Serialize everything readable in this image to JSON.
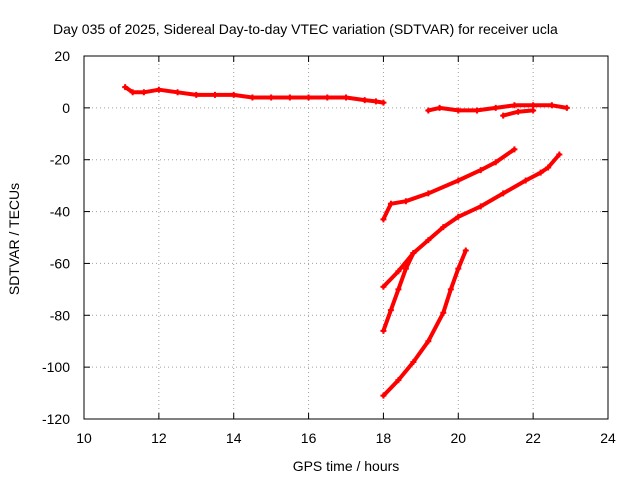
{
  "chart_data": {
    "type": "scatter",
    "title": "Day 035 of 2025, Sidereal Day-to-day VTEC variation (SDTVAR) for receiver ucla",
    "xlabel": "GPS time / hours",
    "ylabel": "SDTVAR / TECUs",
    "xlim": [
      10,
      24
    ],
    "ylim": [
      -120,
      20
    ],
    "xticks": [
      "10",
      "12",
      "14",
      "16",
      "18",
      "20",
      "22",
      "24"
    ],
    "yticks": [
      "20",
      "0",
      "-20",
      "-40",
      "-60",
      "-80",
      "-100",
      "-120"
    ],
    "grid": true,
    "color": "#ff0000",
    "series": [
      {
        "points": [
          [
            11.1,
            8
          ],
          [
            11.3,
            6
          ],
          [
            11.6,
            6
          ],
          [
            12.0,
            7
          ],
          [
            12.5,
            6
          ],
          [
            13.0,
            5
          ],
          [
            13.5,
            5
          ],
          [
            14.0,
            5
          ],
          [
            14.5,
            4
          ],
          [
            15.0,
            4
          ],
          [
            15.5,
            4
          ],
          [
            16.0,
            4
          ],
          [
            16.5,
            4
          ],
          [
            17.0,
            4
          ],
          [
            17.5,
            3
          ],
          [
            17.8,
            2.5
          ],
          [
            18.0,
            2
          ]
        ]
      },
      {
        "points": [
          [
            19.2,
            -1
          ],
          [
            19.5,
            0
          ],
          [
            20.0,
            -1
          ],
          [
            20.5,
            -1
          ],
          [
            21.0,
            0
          ],
          [
            21.5,
            1
          ],
          [
            22.0,
            1
          ],
          [
            22.5,
            1
          ],
          [
            22.9,
            0
          ]
        ]
      },
      {
        "points": [
          [
            21.2,
            -3
          ],
          [
            21.6,
            -1.5
          ],
          [
            22.0,
            -1
          ]
        ]
      },
      {
        "points": [
          [
            18.0,
            -43
          ],
          [
            18.2,
            -37
          ],
          [
            18.6,
            -36
          ],
          [
            19.2,
            -33
          ],
          [
            20.0,
            -28
          ],
          [
            20.6,
            -24
          ],
          [
            21.0,
            -21
          ],
          [
            21.5,
            -16
          ]
        ]
      },
      {
        "points": [
          [
            18.0,
            -69
          ],
          [
            18.4,
            -63
          ],
          [
            18.8,
            -56
          ],
          [
            19.2,
            -51
          ],
          [
            19.6,
            -46
          ],
          [
            20.0,
            -42
          ],
          [
            20.6,
            -38
          ],
          [
            21.2,
            -33
          ],
          [
            21.8,
            -28
          ],
          [
            22.2,
            -25
          ],
          [
            22.4,
            -23
          ],
          [
            22.7,
            -18
          ]
        ]
      },
      {
        "points": [
          [
            18.0,
            -86
          ],
          [
            18.2,
            -78
          ],
          [
            18.4,
            -70
          ],
          [
            18.6,
            -62
          ],
          [
            18.8,
            -56
          ]
        ]
      },
      {
        "points": [
          [
            18.0,
            -111
          ],
          [
            18.4,
            -105
          ],
          [
            18.8,
            -98
          ],
          [
            19.2,
            -90
          ],
          [
            19.6,
            -79
          ],
          [
            19.8,
            -70
          ],
          [
            20.0,
            -62
          ],
          [
            20.2,
            -55
          ]
        ]
      }
    ]
  }
}
